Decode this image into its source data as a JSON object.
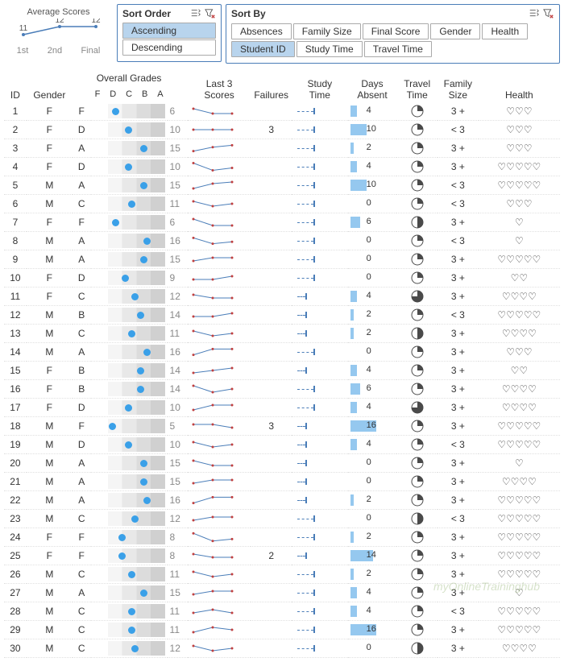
{
  "avg_scores": {
    "title": "Average Scores",
    "points": [
      {
        "label": "1st",
        "val": 11
      },
      {
        "label": "2nd",
        "val": 12
      },
      {
        "label": "Final",
        "val": 12
      }
    ],
    "line_color": "#4a7db8"
  },
  "sort_order": {
    "title": "Sort Order",
    "options": [
      "Ascending",
      "Descending"
    ],
    "selected": "Ascending"
  },
  "sort_by": {
    "title": "Sort By",
    "options": [
      "Absences",
      "Family Size",
      "Final Score",
      "Gender",
      "Health",
      "Student ID",
      "Study Time",
      "Travel Time"
    ],
    "selected": "Student ID"
  },
  "headers": {
    "id": "ID",
    "gender": "Gender",
    "overall": "Overall Grades",
    "grade_letters": [
      "F",
      "D",
      "C",
      "B",
      "A"
    ],
    "last3": "Last 3 Scores",
    "failures": "Failures",
    "study": "Study\nTime",
    "absent": "Days\nAbsent",
    "travel": "Travel\nTime",
    "family": "Family\nSize",
    "health": "Health"
  },
  "colors": {
    "dot": "#3aa0e8",
    "spark_line": "#4a7db8",
    "spark_dot": "#c04040",
    "absent_bar": "#95c8ef",
    "pie_fill": "#4a4a4a",
    "pie_empty": "#ffffff",
    "pie_stroke": "#4a4a4a",
    "heart": "#888"
  },
  "absent_max": 20,
  "rows": [
    {
      "id": 1,
      "gender": "F",
      "letter": "F",
      "grade": 6,
      "spark": [
        8,
        6,
        6
      ],
      "fail": "",
      "study": 2,
      "absent": 4,
      "travel": 0.25,
      "fam": "3 +",
      "health": 3
    },
    {
      "id": 2,
      "gender": "F",
      "letter": "D",
      "grade": 10,
      "spark": [
        10,
        10,
        10
      ],
      "fail": "3",
      "study": 2,
      "absent": 10,
      "travel": 0.25,
      "fam": "< 3",
      "health": 3
    },
    {
      "id": 3,
      "gender": "F",
      "letter": "A",
      "grade": 15,
      "spark": [
        12,
        14,
        15
      ],
      "fail": "",
      "study": 2,
      "absent": 2,
      "travel": 0.25,
      "fam": "3 +",
      "health": 3
    },
    {
      "id": 4,
      "gender": "F",
      "letter": "D",
      "grade": 10,
      "spark": [
        14,
        8,
        10
      ],
      "fail": "",
      "study": 2,
      "absent": 4,
      "travel": 0.25,
      "fam": "3 +",
      "health": 5
    },
    {
      "id": 5,
      "gender": "M",
      "letter": "A",
      "grade": 15,
      "spark": [
        11,
        14,
        15
      ],
      "fail": "",
      "study": 2,
      "absent": 10,
      "travel": 0.25,
      "fam": "< 3",
      "health": 5
    },
    {
      "id": 6,
      "gender": "M",
      "letter": "C",
      "grade": 11,
      "spark": [
        12,
        10,
        11
      ],
      "fail": "",
      "study": 2,
      "absent": 0,
      "travel": 0.25,
      "fam": "< 3",
      "health": 3
    },
    {
      "id": 7,
      "gender": "F",
      "letter": "F",
      "grade": 6,
      "spark": [
        10,
        6,
        6
      ],
      "fail": "",
      "study": 2,
      "absent": 6,
      "travel": 0.5,
      "fam": "3 +",
      "health": 1
    },
    {
      "id": 8,
      "gender": "M",
      "letter": "A",
      "grade": 16,
      "spark": [
        18,
        15,
        16
      ],
      "fail": "",
      "study": 2,
      "absent": 0,
      "travel": 0.25,
      "fam": "< 3",
      "health": 1
    },
    {
      "id": 9,
      "gender": "M",
      "letter": "A",
      "grade": 15,
      "spark": [
        14,
        15,
        15
      ],
      "fail": "",
      "study": 2,
      "absent": 0,
      "travel": 0.25,
      "fam": "3 +",
      "health": 5
    },
    {
      "id": 10,
      "gender": "F",
      "letter": "D",
      "grade": 9,
      "spark": [
        8,
        8,
        9
      ],
      "fail": "",
      "study": 2,
      "absent": 0,
      "travel": 0.25,
      "fam": "3 +",
      "health": 2
    },
    {
      "id": 11,
      "gender": "F",
      "letter": "C",
      "grade": 12,
      "spark": [
        13,
        12,
        12
      ],
      "fail": "",
      "study": 1,
      "absent": 4,
      "travel": 0.75,
      "fam": "3 +",
      "health": 4
    },
    {
      "id": 12,
      "gender": "M",
      "letter": "B",
      "grade": 14,
      "spark": [
        13,
        13,
        14
      ],
      "fail": "",
      "study": 1,
      "absent": 2,
      "travel": 0.25,
      "fam": "< 3",
      "health": 5
    },
    {
      "id": 13,
      "gender": "M",
      "letter": "C",
      "grade": 11,
      "spark": [
        12,
        10,
        11
      ],
      "fail": "",
      "study": 1,
      "absent": 2,
      "travel": 0.5,
      "fam": "3 +",
      "health": 4
    },
    {
      "id": 14,
      "gender": "M",
      "letter": "A",
      "grade": 16,
      "spark": [
        13,
        16,
        16
      ],
      "fail": "",
      "study": 2,
      "absent": 0,
      "travel": 0.25,
      "fam": "3 +",
      "health": 3
    },
    {
      "id": 15,
      "gender": "F",
      "letter": "B",
      "grade": 14,
      "spark": [
        12,
        13,
        14
      ],
      "fail": "",
      "study": 1,
      "absent": 4,
      "travel": 0.25,
      "fam": "3 +",
      "health": 2
    },
    {
      "id": 16,
      "gender": "F",
      "letter": "B",
      "grade": 14,
      "spark": [
        16,
        12,
        14
      ],
      "fail": "",
      "study": 2,
      "absent": 6,
      "travel": 0.25,
      "fam": "3 +",
      "health": 4
    },
    {
      "id": 17,
      "gender": "F",
      "letter": "D",
      "grade": 10,
      "spark": [
        8,
        10,
        10
      ],
      "fail": "",
      "study": 2,
      "absent": 4,
      "travel": 0.75,
      "fam": "3 +",
      "health": 4
    },
    {
      "id": 18,
      "gender": "M",
      "letter": "F",
      "grade": 5,
      "spark": [
        6,
        6,
        5
      ],
      "fail": "3",
      "study": 1,
      "absent": 16,
      "travel": 0.25,
      "fam": "3 +",
      "health": 5
    },
    {
      "id": 19,
      "gender": "M",
      "letter": "D",
      "grade": 10,
      "spark": [
        11,
        9,
        10
      ],
      "fail": "",
      "study": 1,
      "absent": 4,
      "travel": 0.25,
      "fam": "< 3",
      "health": 5
    },
    {
      "id": 20,
      "gender": "M",
      "letter": "A",
      "grade": 15,
      "spark": [
        17,
        15,
        15
      ],
      "fail": "",
      "study": 1,
      "absent": 0,
      "travel": 0.25,
      "fam": "3 +",
      "health": 1
    },
    {
      "id": 21,
      "gender": "M",
      "letter": "A",
      "grade": 15,
      "spark": [
        14,
        15,
        15
      ],
      "fail": "",
      "study": 1,
      "absent": 0,
      "travel": 0.25,
      "fam": "3 +",
      "health": 4
    },
    {
      "id": 22,
      "gender": "M",
      "letter": "A",
      "grade": 16,
      "spark": [
        13,
        16,
        16
      ],
      "fail": "",
      "study": 1,
      "absent": 2,
      "travel": 0.25,
      "fam": "3 +",
      "health": 5
    },
    {
      "id": 23,
      "gender": "M",
      "letter": "C",
      "grade": 12,
      "spark": [
        11,
        12,
        12
      ],
      "fail": "",
      "study": 2,
      "absent": 0,
      "travel": 0.5,
      "fam": "< 3",
      "health": 5
    },
    {
      "id": 24,
      "gender": "F",
      "letter": "F",
      "grade": 8,
      "spark": [
        14,
        6,
        8
      ],
      "fail": "",
      "study": 2,
      "absent": 2,
      "travel": 0.25,
      "fam": "3 +",
      "health": 5
    },
    {
      "id": 25,
      "gender": "F",
      "letter": "F",
      "grade": 8,
      "spark": [
        9,
        8,
        8
      ],
      "fail": "2",
      "study": 1,
      "absent": 14,
      "travel": 0.25,
      "fam": "3 +",
      "health": 5
    },
    {
      "id": 26,
      "gender": "M",
      "letter": "C",
      "grade": 11,
      "spark": [
        12,
        10,
        11
      ],
      "fail": "",
      "study": 2,
      "absent": 2,
      "travel": 0.25,
      "fam": "3 +",
      "health": 5
    },
    {
      "id": 27,
      "gender": "M",
      "letter": "A",
      "grade": 15,
      "spark": [
        14,
        15,
        15
      ],
      "fail": "",
      "study": 2,
      "absent": 4,
      "travel": 0.25,
      "fam": "3 +",
      "health": 1
    },
    {
      "id": 28,
      "gender": "M",
      "letter": "C",
      "grade": 11,
      "spark": [
        11,
        12,
        11
      ],
      "fail": "",
      "study": 2,
      "absent": 4,
      "travel": 0.25,
      "fam": "< 3",
      "health": 5
    },
    {
      "id": 29,
      "gender": "M",
      "letter": "C",
      "grade": 11,
      "spark": [
        10,
        12,
        11
      ],
      "fail": "",
      "study": 2,
      "absent": 16,
      "travel": 0.25,
      "fam": "3 +",
      "health": 5
    },
    {
      "id": 30,
      "gender": "M",
      "letter": "C",
      "grade": 12,
      "spark": [
        13,
        11,
        12
      ],
      "fail": "",
      "study": 2,
      "absent": 0,
      "travel": 0.5,
      "fam": "3 +",
      "health": 4
    }
  ],
  "watermark": "myOnlineTraininghub"
}
